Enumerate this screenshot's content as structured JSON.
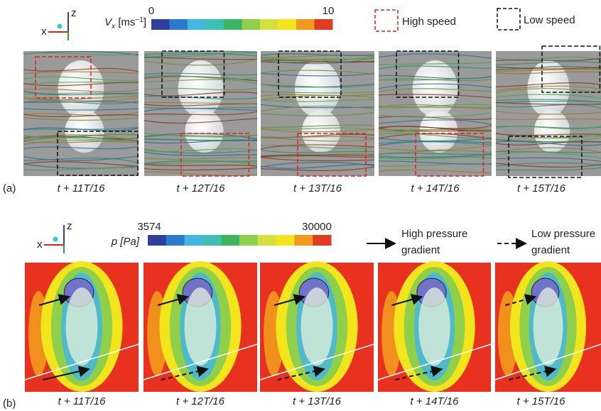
{
  "panel_a": {
    "label": "(a)",
    "axes": {
      "z": "z",
      "x": "x"
    },
    "colorbar": {
      "symbol": "V",
      "subscript": "x",
      "unit": "[ms",
      "superscript": "−1",
      "unit_close": "]",
      "min": 0,
      "max": 10
    },
    "legend": [
      {
        "label": "High speed"
      },
      {
        "label": "Low speed"
      }
    ],
    "frames": [
      "t + 11T/16",
      "t + 12T/16",
      "t + 13T/16",
      "t + 14T/16",
      "t + 15T/16"
    ]
  },
  "panel_b": {
    "label": "(b)",
    "axes": {
      "z": "z",
      "x": "x"
    },
    "colorbar": {
      "label": "p [Pa]",
      "min": 3574,
      "max": 30000
    },
    "legend": [
      {
        "lines": [
          "High pressure",
          "gradient"
        ]
      },
      {
        "lines": [
          "Low pressure",
          "gradient"
        ]
      }
    ],
    "frames": [
      "t + 11T/16",
      "t + 12T/16",
      "t + 13T/16",
      "t + 14T/16",
      "t + 15T/16"
    ]
  }
}
